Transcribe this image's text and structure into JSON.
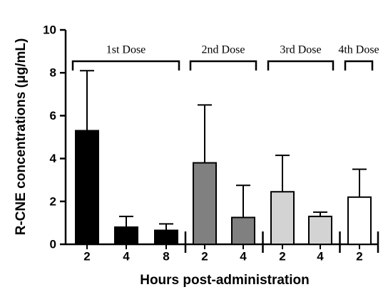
{
  "chart_data": {
    "type": "bar",
    "y_label": "R-CNE concentrations (μg/mL)",
    "x_label": "Hours post-administration",
    "categories": [
      "2",
      "4",
      "8",
      "2",
      "4",
      "2",
      "4",
      "2"
    ],
    "values": [
      5.3,
      0.8,
      0.65,
      3.8,
      1.25,
      2.45,
      1.3,
      2.2
    ],
    "errors": [
      2.8,
      0.5,
      0.3,
      2.7,
      1.5,
      1.7,
      0.2,
      1.3
    ],
    "colors": [
      "#000000",
      "#000000",
      "#000000",
      "#808080",
      "#808080",
      "#d3d3d3",
      "#d3d3d3",
      "#ffffff"
    ],
    "groups": [
      {
        "label": "1st Dose",
        "count": 3
      },
      {
        "label": "2nd Dose",
        "count": 2
      },
      {
        "label": "3rd Dose",
        "count": 2
      },
      {
        "label": "4th Dose",
        "count": 1
      }
    ],
    "ylim": [
      0,
      10
    ],
    "yticks": [
      0,
      2,
      4,
      6,
      8,
      10
    ]
  }
}
